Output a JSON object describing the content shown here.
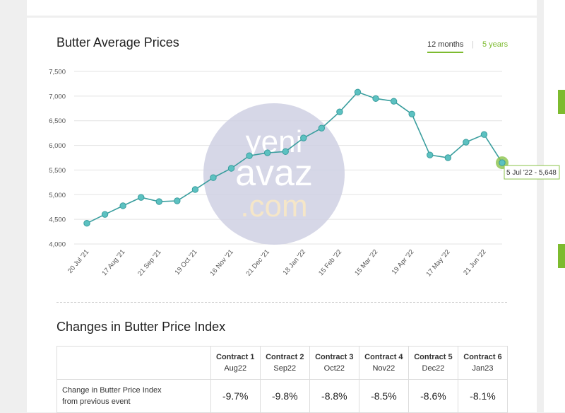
{
  "chart_data": {
    "type": "line",
    "title": "Butter Average Prices",
    "categories": [
      "20 Jul '21",
      null,
      "17 Aug '21",
      null,
      "21 Sep '21",
      null,
      "19 Oct '21",
      null,
      "16 Nov '21",
      null,
      "21 Dec '21",
      null,
      "18 Jan '22",
      null,
      "15 Feb '22",
      null,
      "15 Mar '22",
      null,
      "19 Apr '22",
      null,
      "17 May '22",
      null,
      "21 Jun '22",
      null
    ],
    "series": [
      {
        "name": "Butter",
        "color": "#3a9e9e",
        "values": [
          4420,
          4600,
          4775,
          4945,
          4860,
          4875,
          5105,
          5345,
          5535,
          5790,
          5850,
          5875,
          6150,
          6350,
          6680,
          7080,
          6950,
          6895,
          6635,
          5805,
          5750,
          6065,
          6220,
          5648
        ]
      }
    ],
    "ylim": [
      4000,
      7500
    ],
    "yticks": [
      {
        "value": 4000,
        "label": "4,000"
      },
      {
        "value": 4500,
        "label": "4,500"
      },
      {
        "value": 5000,
        "label": "5,000"
      },
      {
        "value": 5500,
        "label": "5,500"
      },
      {
        "value": 6000,
        "label": "6,000"
      },
      {
        "value": 6500,
        "label": "6,500"
      },
      {
        "value": 7000,
        "label": "7,000"
      },
      {
        "value": 7500,
        "label": "7,500"
      }
    ],
    "grid": true,
    "tooltip": "5 Jul '22 - 5,648"
  },
  "tabs": [
    "12 months",
    "5 years"
  ],
  "watermark": [
    "yeni",
    "avaz",
    ".com"
  ],
  "section_title": "Changes in Butter Price Index",
  "table": {
    "columns": [
      {
        "name": "Contract 1",
        "sub": "Aug22"
      },
      {
        "name": "Contract 2",
        "sub": "Sep22"
      },
      {
        "name": "Contract 3",
        "sub": "Oct22"
      },
      {
        "name": "Contract 4",
        "sub": "Nov22"
      },
      {
        "name": "Contract 5",
        "sub": "Dec22"
      },
      {
        "name": "Contract 6",
        "sub": "Jan23"
      }
    ],
    "rows": [
      {
        "label": "Change in Butter Price Index from previous event",
        "values": [
          "-9.7%",
          "-9.8%",
          "-8.8%",
          "-8.5%",
          "-8.6%",
          "-8.1%"
        ]
      }
    ]
  }
}
